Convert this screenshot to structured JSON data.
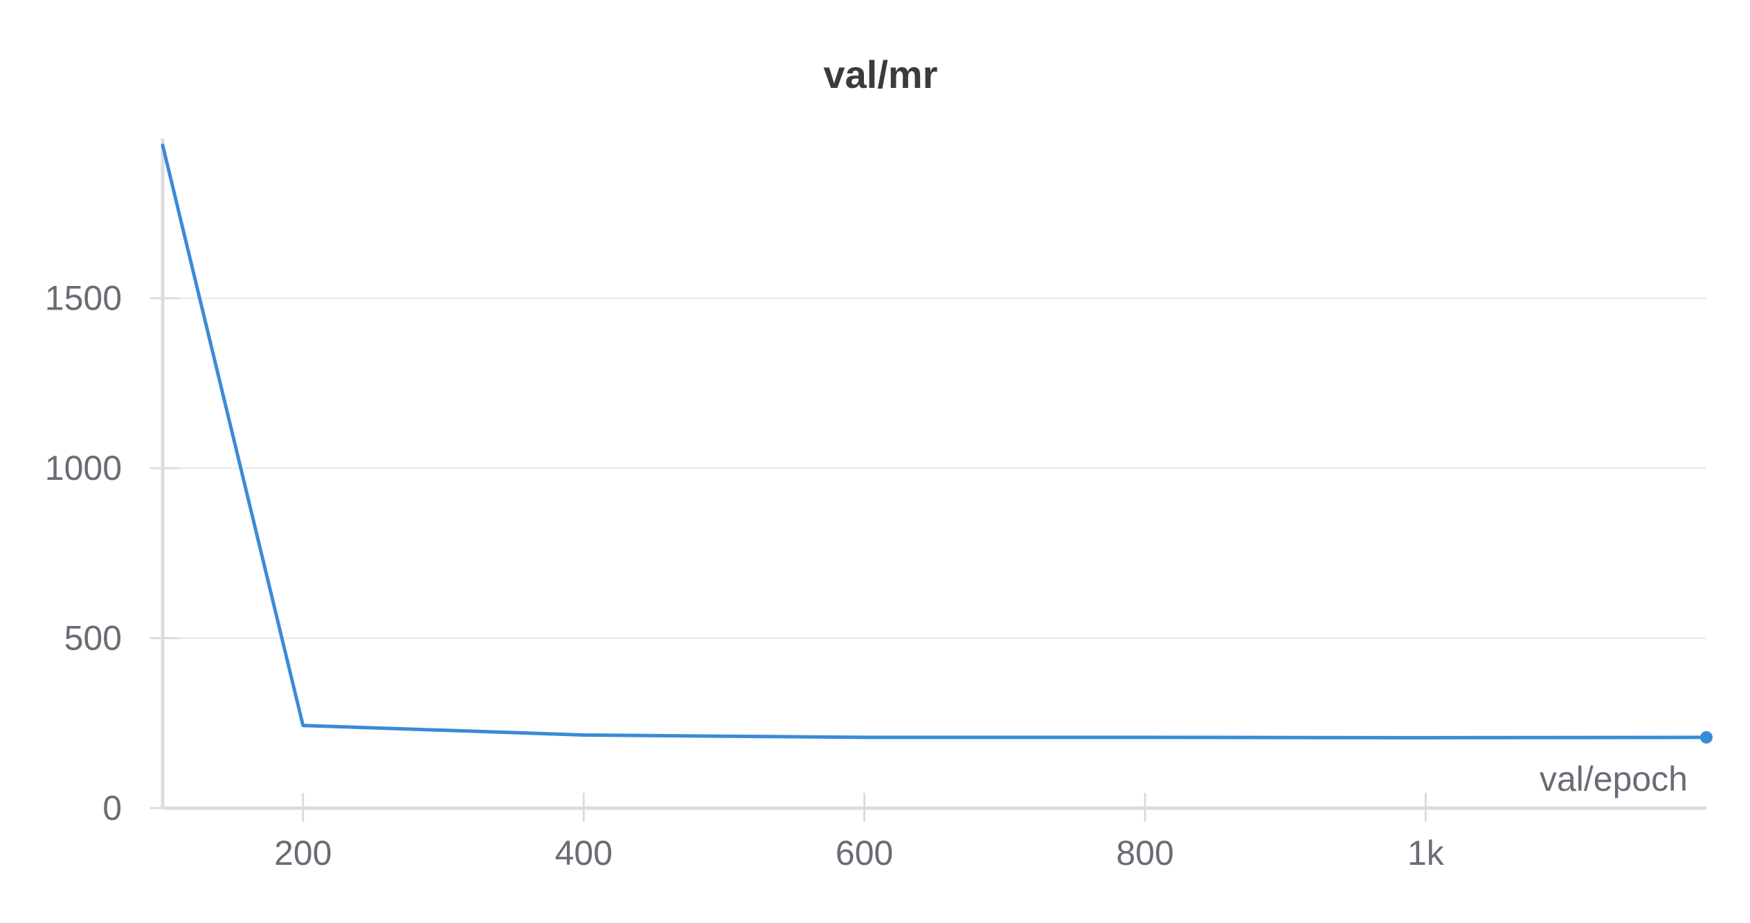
{
  "chart_data": {
    "type": "line",
    "title": "val/mr",
    "xlabel": "val/epoch",
    "ylabel": "",
    "x_ticks": [
      {
        "value": 200,
        "label": "200"
      },
      {
        "value": 400,
        "label": "400"
      },
      {
        "value": 600,
        "label": "600"
      },
      {
        "value": 800,
        "label": "800"
      },
      {
        "value": 1000,
        "label": "1k"
      }
    ],
    "y_ticks": [
      {
        "value": 0,
        "label": "0"
      },
      {
        "value": 500,
        "label": "500"
      },
      {
        "value": 1000,
        "label": "1000"
      },
      {
        "value": 1500,
        "label": "1500"
      }
    ],
    "xlim": [
      100,
      1200
    ],
    "ylim": [
      0,
      1970
    ],
    "grid": true,
    "series": [
      {
        "color": "#3a8bd6",
        "x": [
          100,
          200,
          400,
          600,
          800,
          1000,
          1200
        ],
        "y": [
          1950,
          243,
          215,
          208,
          208,
          207,
          208
        ]
      }
    ]
  }
}
